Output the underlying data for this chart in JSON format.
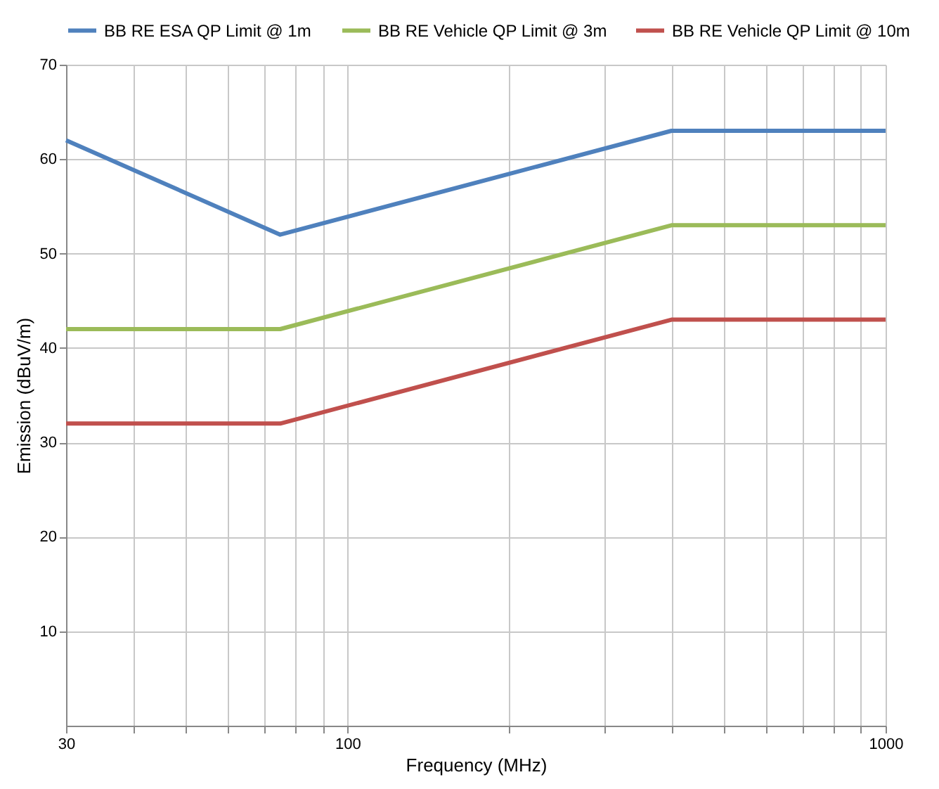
{
  "chart_data": {
    "type": "line",
    "xlabel": "Frequency (MHz)",
    "ylabel": "Emission (dBuV/m)",
    "log": "x",
    "xlim": [
      30,
      1000
    ],
    "ylim": [
      0,
      70
    ],
    "xticks": [
      30,
      {
        "value": 40,
        "label": null
      },
      {
        "value": 50,
        "label": null
      },
      {
        "value": 60,
        "label": null
      },
      {
        "value": 70,
        "label": null
      },
      {
        "value": 80,
        "label": null
      },
      {
        "value": 90,
        "label": null
      },
      100,
      {
        "value": 200,
        "label": null
      },
      {
        "value": 300,
        "label": null
      },
      {
        "value": 400,
        "label": null
      },
      {
        "value": 500,
        "label": null
      },
      {
        "value": 600,
        "label": null
      },
      {
        "value": 700,
        "label": null
      },
      {
        "value": 800,
        "label": null
      },
      {
        "value": 900,
        "label": null
      },
      1000
    ],
    "yticks": [
      10,
      20,
      30,
      40,
      50,
      60,
      70
    ],
    "grid": true,
    "legend": "top",
    "line_style": "solid",
    "marker": "none",
    "series": [
      {
        "name": "BB RE ESA QP Limit @ 1m",
        "color": "#4f81bd",
        "x": [
          30,
          75,
          400,
          1000
        ],
        "values": [
          62,
          52,
          63,
          63
        ]
      },
      {
        "name": "BB RE Vehicle QP Limit @ 3m",
        "color": "#9bbb59",
        "x": [
          30,
          75,
          400,
          1000
        ],
        "values": [
          42,
          42,
          53,
          53
        ]
      },
      {
        "name": "BB RE Vehicle QP Limit @ 10m",
        "color": "#c0504d",
        "x": [
          30,
          75,
          400,
          1000
        ],
        "values": [
          32,
          32,
          43,
          43
        ]
      }
    ]
  }
}
